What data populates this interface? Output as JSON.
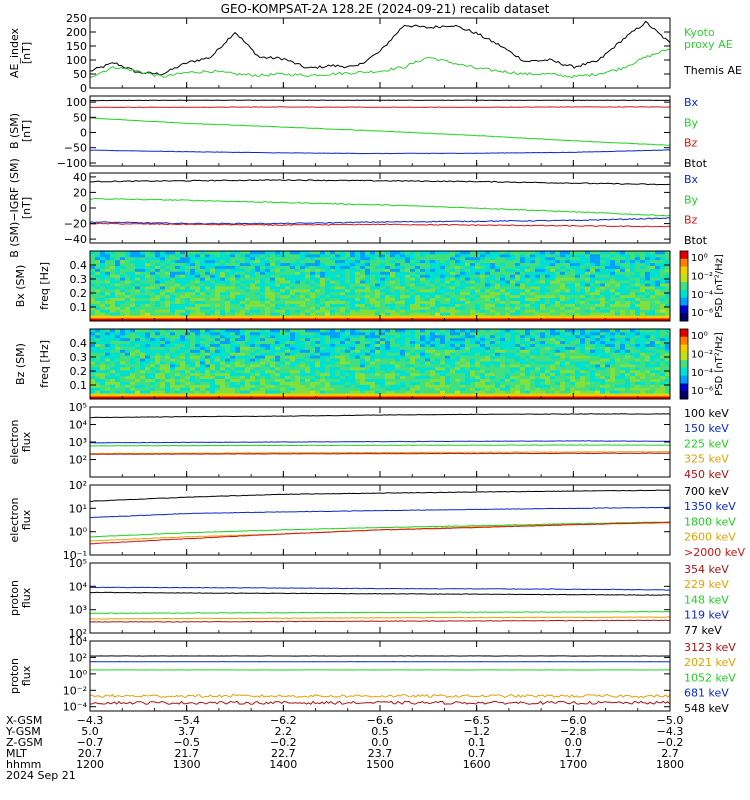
{
  "title": "GEO-KOMPSAT-2A 128.2E (2024-09-21) recalib dataset",
  "colors": {
    "black": "#000000",
    "blue": "#0a28c8",
    "green": "#1ed21e",
    "red": "#d21414",
    "orange": "#e6a000",
    "darkred": "#aa1414",
    "kyoto": "#33cc33"
  },
  "chart_data": [
    {
      "type": "line",
      "id": "ae",
      "ylabel": "AE_index\n[nT]",
      "ylim": [
        0,
        250
      ],
      "yticks": [
        "0",
        "50",
        "100",
        "150",
        "200",
        "250"
      ],
      "x": [
        1200,
        1215,
        1230,
        1245,
        1300,
        1315,
        1330,
        1345,
        1400,
        1415,
        1430,
        1445,
        1500,
        1515,
        1530,
        1545,
        1600,
        1615,
        1630,
        1645,
        1700,
        1715,
        1730,
        1745,
        1800
      ],
      "series": [
        {
          "name": "Themis AE",
          "color_key": "black",
          "values": [
            60,
            90,
            55,
            50,
            90,
            110,
            200,
            110,
            105,
            70,
            80,
            75,
            130,
            225,
            215,
            225,
            195,
            150,
            95,
            100,
            75,
            95,
            170,
            235,
            160
          ]
        },
        {
          "name": "Kyoto\nproxy AE",
          "color_key": "kyoto",
          "values": [
            40,
            75,
            60,
            40,
            55,
            60,
            50,
            45,
            50,
            45,
            50,
            55,
            60,
            75,
            110,
            90,
            70,
            60,
            50,
            50,
            40,
            50,
            70,
            110,
            140
          ]
        }
      ],
      "legend": [
        "Kyoto\nproxy AE",
        "Themis AE"
      ]
    },
    {
      "type": "line",
      "id": "bsm",
      "ylabel": "B (SM)\n[nT]",
      "ylim": [
        -110,
        120
      ],
      "yticks": [
        "−100",
        "−50",
        "0",
        "50",
        "100"
      ],
      "x": [
        1200,
        1300,
        1400,
        1500,
        1600,
        1700,
        1800
      ],
      "series": [
        {
          "name": "Btot",
          "color_key": "black",
          "values": [
            105,
            106,
            106,
            106,
            106,
            106,
            106
          ]
        },
        {
          "name": "Bz",
          "color_key": "red",
          "values": [
            83,
            83,
            84,
            83,
            83,
            84,
            84
          ]
        },
        {
          "name": "By",
          "color_key": "green",
          "values": [
            48,
            30,
            18,
            5,
            -10,
            -27,
            -42
          ]
        },
        {
          "name": "Bx",
          "color_key": "blue",
          "values": [
            -58,
            -63,
            -67,
            -69,
            -68,
            -65,
            -57
          ]
        }
      ],
      "legend": [
        "Bx",
        "By",
        "Bz",
        "Btot"
      ]
    },
    {
      "type": "line",
      "id": "bigrf",
      "ylabel": "B (SM)−IGRF (SM)\n[nT]",
      "ylim": [
        -45,
        45
      ],
      "yticks": [
        "−40",
        "−20",
        "0",
        "20",
        "40"
      ],
      "x": [
        1200,
        1300,
        1400,
        1500,
        1600,
        1700,
        1800
      ],
      "series": [
        {
          "name": "Btot",
          "color_key": "black",
          "values": [
            34,
            35,
            36,
            35,
            34,
            32,
            30
          ]
        },
        {
          "name": "By",
          "color_key": "green",
          "values": [
            12,
            10,
            7,
            4,
            0,
            -5,
            -10
          ]
        },
        {
          "name": "Bx",
          "color_key": "blue",
          "values": [
            -18,
            -20,
            -20,
            -18,
            -17,
            -16,
            -13
          ]
        },
        {
          "name": "Bz",
          "color_key": "red",
          "values": [
            -20,
            -21,
            -22,
            -21,
            -22,
            -23,
            -24
          ]
        }
      ],
      "legend": [
        "Bx",
        "By",
        "Bz",
        "Btot"
      ]
    },
    {
      "type": "heatmap",
      "id": "bxpsd",
      "ylabel": "Bx (SM)",
      "ylabel2": "freq [Hz]",
      "ylim": [
        0.0,
        0.5
      ],
      "yticks": [
        "0.1",
        "0.2",
        "0.3",
        "0.4"
      ],
      "colorbar_label": "PSD [nT²/Hz]",
      "colorbar_ticks": [
        "10⁰",
        "10⁻²",
        "10⁻⁴",
        "10⁻⁶"
      ]
    },
    {
      "type": "heatmap",
      "id": "bzpsd",
      "ylabel": "Bz (SM)",
      "ylabel2": "freq [Hz]",
      "ylim": [
        0.0,
        0.5
      ],
      "yticks": [
        "0.1",
        "0.2",
        "0.3",
        "0.4"
      ],
      "colorbar_label": "PSD [nT²/Hz]",
      "colorbar_ticks": [
        "10⁰",
        "10⁻²",
        "10⁻⁴",
        "10⁻⁶"
      ]
    },
    {
      "type": "line",
      "id": "elow",
      "ylabel": "electron\nflux",
      "scale": "log",
      "ylim": [
        10,
        100000
      ],
      "yticks": [
        "10²",
        "10³",
        "10⁴",
        "10⁵"
      ],
      "x": [
        1200,
        1300,
        1400,
        1500,
        1600,
        1700,
        1800
      ],
      "series": [
        {
          "name": "100 keV",
          "color_key": "black",
          "values": [
            25000,
            28000,
            30000,
            35000,
            38000,
            40000,
            40000
          ]
        },
        {
          "name": "150 keV",
          "color_key": "blue",
          "values": [
            900,
            950,
            1000,
            1050,
            1100,
            1150,
            1100
          ]
        },
        {
          "name": "225 keV",
          "color_key": "green",
          "values": [
            600,
            620,
            640,
            650,
            660,
            670,
            660
          ]
        },
        {
          "name": "325 keV",
          "color_key": "orange",
          "values": [
            220,
            230,
            240,
            250,
            260,
            270,
            280
          ]
        },
        {
          "name": "450 keV",
          "color_key": "darkred",
          "values": [
            200,
            205,
            210,
            215,
            220,
            225,
            230
          ]
        }
      ],
      "legend": [
        "100 keV",
        "150 keV",
        "225 keV",
        "325 keV",
        "450 keV"
      ]
    },
    {
      "type": "line",
      "id": "ehigh",
      "ylabel": "electron\nflux",
      "scale": "log",
      "ylim": [
        0.1,
        100
      ],
      "yticks": [
        "10⁻¹",
        "10⁰",
        "10¹",
        "10²"
      ],
      "x": [
        1200,
        1300,
        1400,
        1500,
        1600,
        1700,
        1800
      ],
      "series": [
        {
          "name": "700 keV",
          "color_key": "black",
          "values": [
            20,
            30,
            40,
            45,
            50,
            55,
            60
          ]
        },
        {
          "name": "1350 keV",
          "color_key": "blue",
          "values": [
            4,
            6,
            7,
            8,
            9,
            10,
            11
          ]
        },
        {
          "name": "1800 keV",
          "color_key": "green",
          "values": [
            0.6,
            0.9,
            1.2,
            1.5,
            1.8,
            2.2,
            2.6
          ]
        },
        {
          "name": "2600 keV",
          "color_key": "orange",
          "values": [
            0.4,
            0.6,
            0.8,
            1.2,
            1.6,
            2.0,
            2.4
          ]
        },
        {
          "name": ">2000 keV",
          "color_key": "red",
          "values": [
            0.3,
            0.5,
            0.8,
            1.2,
            1.5,
            2.0,
            2.5
          ]
        }
      ],
      "legend": [
        "700 keV",
        "1350 keV",
        "1800 keV",
        "2600 keV",
        ">2000 keV"
      ]
    },
    {
      "type": "line",
      "id": "plow",
      "ylabel": "proton\nflux",
      "scale": "log",
      "ylim": [
        100,
        100000
      ],
      "yticks": [
        "10²",
        "10³",
        "10⁴",
        "10⁵"
      ],
      "x": [
        1200,
        1300,
        1400,
        1500,
        1600,
        1700,
        1800
      ],
      "series": [
        {
          "name": "354 keV",
          "color_key": "darkred",
          "values": [
            300,
            300,
            310,
            320,
            330,
            340,
            350
          ]
        },
        {
          "name": "229 keV",
          "color_key": "orange",
          "values": [
            400,
            420,
            430,
            450,
            460,
            470,
            480
          ]
        },
        {
          "name": "148 keV",
          "color_key": "green",
          "values": [
            700,
            720,
            740,
            760,
            780,
            800,
            820
          ]
        },
        {
          "name": "119 keV",
          "color_key": "blue",
          "values": [
            9000,
            8800,
            8500,
            8000,
            7800,
            7500,
            7000
          ]
        },
        {
          "name": "77 keV",
          "color_key": "black",
          "values": [
            5500,
            5200,
            5000,
            4800,
            4600,
            4400,
            4200
          ]
        }
      ],
      "legend": [
        "354 keV",
        "229 keV",
        "148 keV",
        "119 keV",
        "77 keV"
      ]
    },
    {
      "type": "line",
      "id": "phigh",
      "ylabel": "proton\nflux",
      "scale": "log",
      "ylim": [
        3e-05,
        10000
      ],
      "yticks": [
        "10⁻⁴",
        "10⁻²",
        "10⁰",
        "10²",
        "10⁴"
      ],
      "x": [
        1200,
        1300,
        1400,
        1500,
        1600,
        1700,
        1800
      ],
      "series": [
        {
          "name": "3123 keV",
          "color_key": "darkred",
          "values": [
            0.0003,
            0.0003,
            0.0003,
            0.0003,
            0.0003,
            0.0003,
            0.0003
          ]
        },
        {
          "name": "2021 keV",
          "color_key": "orange",
          "values": [
            0.002,
            0.002,
            0.002,
            0.002,
            0.002,
            0.002,
            0.002
          ]
        },
        {
          "name": "1052 keV",
          "color_key": "green",
          "values": [
            3,
            3,
            3,
            3,
            3,
            3,
            3
          ]
        },
        {
          "name": "681 keV",
          "color_key": "blue",
          "values": [
            30,
            30,
            30,
            30,
            30,
            30,
            30
          ]
        },
        {
          "name": "548 keV",
          "color_key": "black",
          "values": [
            150,
            150,
            150,
            150,
            150,
            150,
            150
          ]
        }
      ],
      "legend": [
        "3123 keV",
        "2021 keV",
        "1052 keV",
        "681 keV",
        "548 keV"
      ]
    }
  ],
  "ephemeris": {
    "labels": [
      "X-GSM",
      "Y-GSM",
      "Z-GSM",
      "MLT",
      "hhmm"
    ],
    "columns": [
      [
        "−4.3",
        "5.0",
        "−0.7",
        "20.7",
        "1200"
      ],
      [
        "−5.4",
        "3.7",
        "−0.5",
        "21.7",
        "1300"
      ],
      [
        "−6.2",
        "2.2",
        "−0.2",
        "22.7",
        "1400"
      ],
      [
        "−6.6",
        "0.5",
        "0.0",
        "23.7",
        "1500"
      ],
      [
        "−6.5",
        "−1.2",
        "0.1",
        "0.7",
        "1600"
      ],
      [
        "−6.0",
        "−2.8",
        "0.0",
        "1.7",
        "1700"
      ],
      [
        "−5.0",
        "−4.3",
        "−0.2",
        "2.7",
        "1800"
      ]
    ],
    "date": "2024 Sep 21"
  }
}
